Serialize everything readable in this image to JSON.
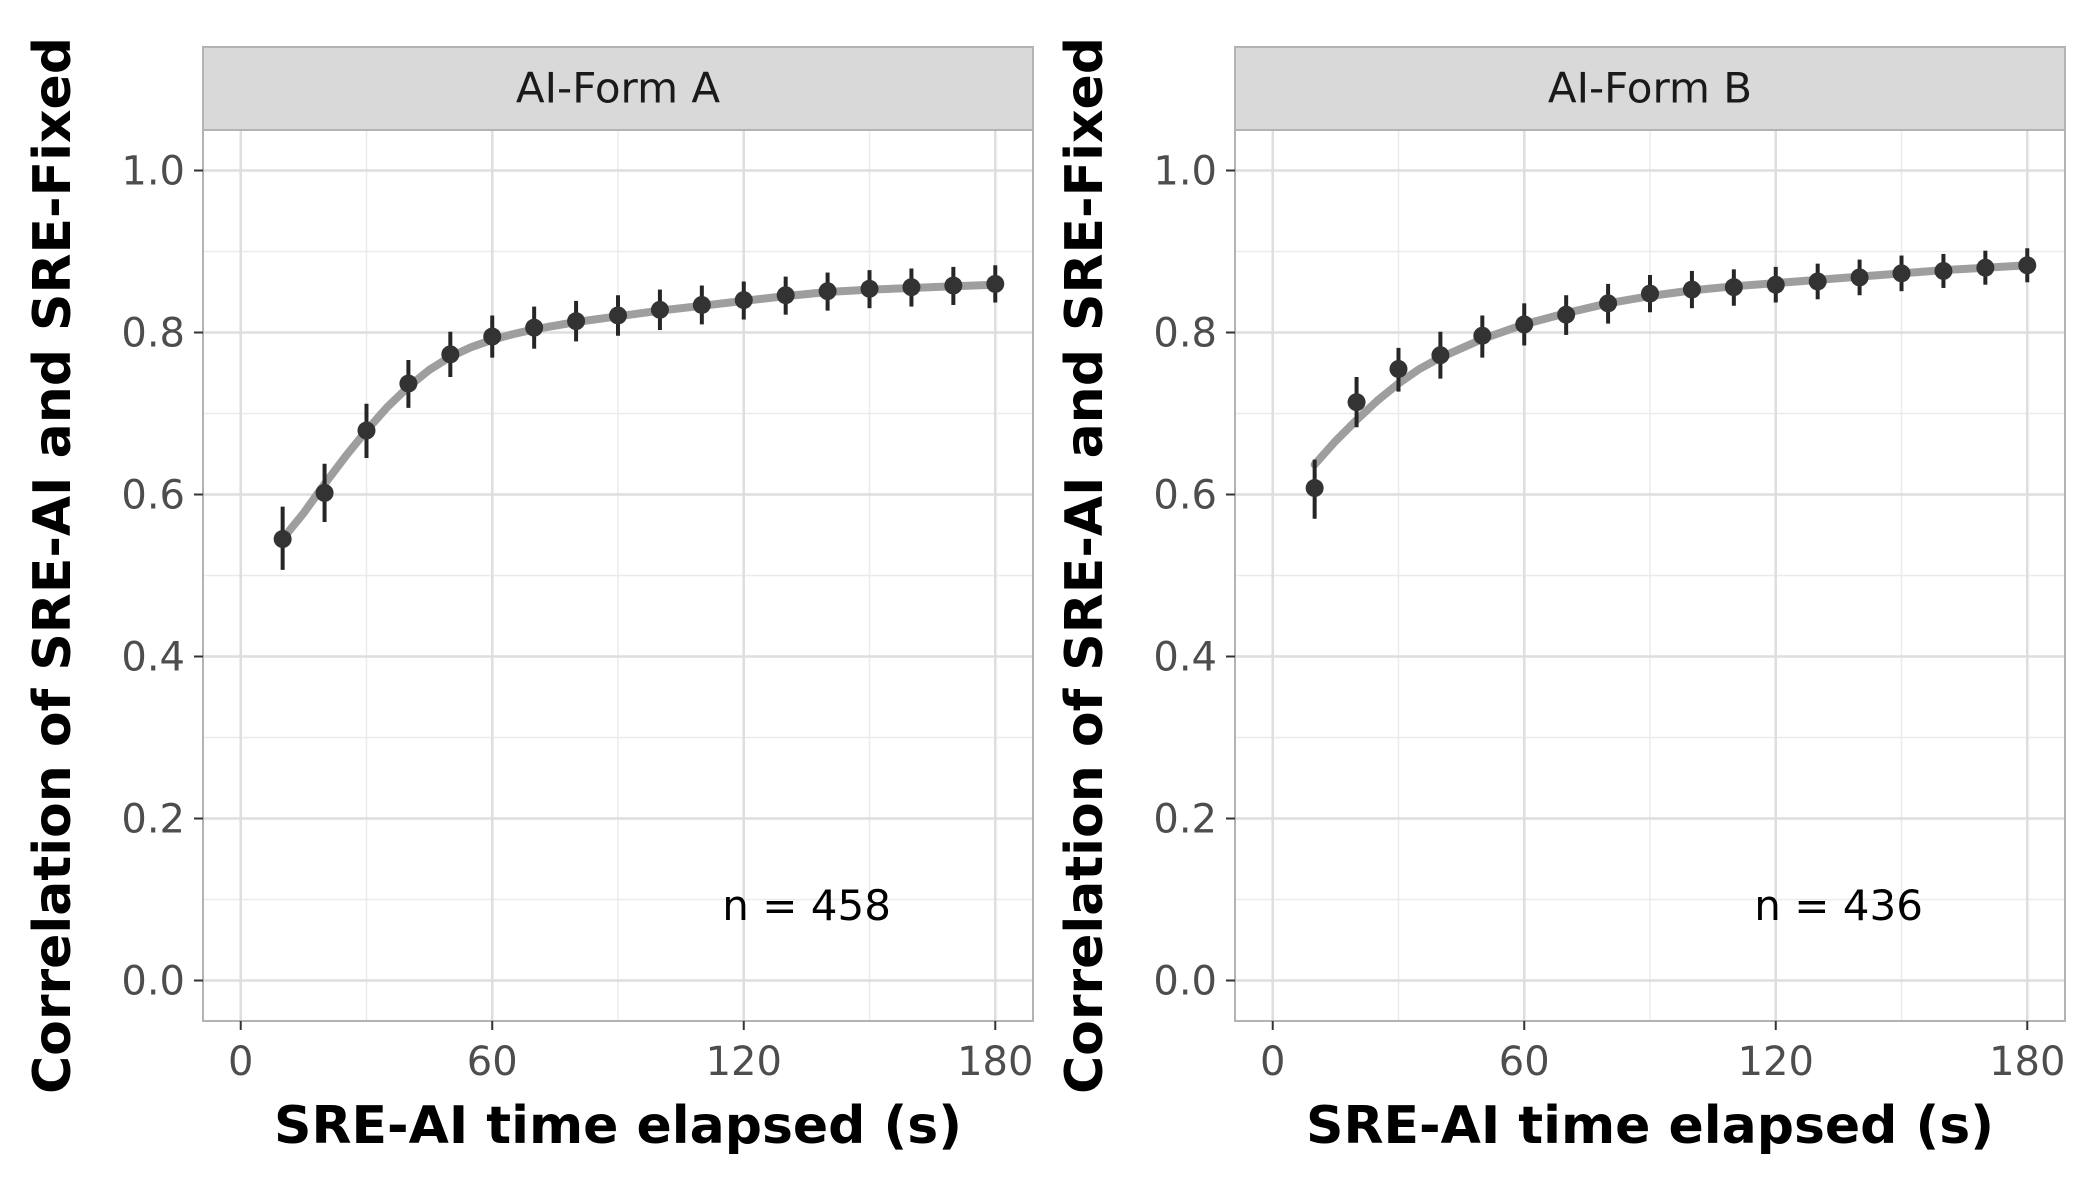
{
  "chart_data": [
    {
      "type": "scatter",
      "title": "AI-Form A",
      "annotation": "n = 458",
      "xlabel": "SRE-AI time elapsed (s)",
      "ylabel": "Correlation of SRE-AI and SRE-Fixed",
      "xlim": [
        -9,
        189
      ],
      "ylim": [
        -0.05,
        1.05
      ],
      "xticks": [
        0,
        60,
        120,
        180
      ],
      "xtick_labels": [
        "0",
        "60",
        "120",
        "180"
      ],
      "yticks": [
        0.0,
        0.2,
        0.4,
        0.6,
        0.8,
        1.0
      ],
      "ytick_labels": [
        "0.0",
        "0.2",
        "0.4",
        "0.6",
        "0.8",
        "1.0"
      ],
      "grid": true,
      "points": {
        "x": [
          10,
          20,
          30,
          40,
          50,
          60,
          70,
          80,
          90,
          100,
          110,
          120,
          130,
          140,
          150,
          160,
          170,
          180
        ],
        "y": [
          0.545,
          0.602,
          0.679,
          0.737,
          0.773,
          0.795,
          0.806,
          0.814,
          0.821,
          0.828,
          0.834,
          0.84,
          0.846,
          0.851,
          0.854,
          0.856,
          0.858,
          0.86
        ],
        "lower": [
          0.507,
          0.566,
          0.645,
          0.707,
          0.745,
          0.769,
          0.78,
          0.789,
          0.796,
          0.803,
          0.81,
          0.816,
          0.822,
          0.827,
          0.83,
          0.832,
          0.834,
          0.837
        ],
        "upper": [
          0.585,
          0.638,
          0.712,
          0.766,
          0.801,
          0.821,
          0.832,
          0.839,
          0.846,
          0.853,
          0.858,
          0.863,
          0.869,
          0.874,
          0.877,
          0.879,
          0.881,
          0.883
        ]
      },
      "smooth": {
        "x": [
          10,
          15,
          20,
          25,
          30,
          35,
          40,
          45,
          50,
          55,
          60,
          65,
          70,
          80,
          90,
          100,
          110,
          120,
          130,
          140,
          150,
          160,
          170,
          180
        ],
        "y": [
          0.545,
          0.577,
          0.613,
          0.647,
          0.679,
          0.708,
          0.733,
          0.754,
          0.77,
          0.782,
          0.791,
          0.798,
          0.804,
          0.813,
          0.82,
          0.827,
          0.833,
          0.839,
          0.845,
          0.85,
          0.853,
          0.855,
          0.857,
          0.859
        ]
      }
    },
    {
      "type": "scatter",
      "title": "AI-Form B",
      "annotation": "n = 436",
      "xlabel": "SRE-AI time elapsed (s)",
      "ylabel": "Correlation of SRE-AI and SRE-Fixed",
      "xlim": [
        -9,
        189
      ],
      "ylim": [
        -0.05,
        1.05
      ],
      "xticks": [
        0,
        60,
        120,
        180
      ],
      "xtick_labels": [
        "0",
        "60",
        "120",
        "180"
      ],
      "yticks": [
        0.0,
        0.2,
        0.4,
        0.6,
        0.8,
        1.0
      ],
      "ytick_labels": [
        "0.0",
        "0.2",
        "0.4",
        "0.6",
        "0.8",
        "1.0"
      ],
      "grid": true,
      "points": {
        "x": [
          10,
          20,
          30,
          40,
          50,
          60,
          70,
          80,
          90,
          100,
          110,
          120,
          130,
          140,
          150,
          160,
          170,
          180
        ],
        "y": [
          0.608,
          0.714,
          0.755,
          0.772,
          0.796,
          0.81,
          0.822,
          0.836,
          0.848,
          0.853,
          0.856,
          0.859,
          0.863,
          0.868,
          0.873,
          0.876,
          0.88,
          0.883
        ],
        "lower": [
          0.57,
          0.683,
          0.727,
          0.743,
          0.769,
          0.784,
          0.797,
          0.811,
          0.825,
          0.83,
          0.833,
          0.837,
          0.841,
          0.846,
          0.851,
          0.855,
          0.859,
          0.862
        ],
        "upper": [
          0.643,
          0.745,
          0.781,
          0.801,
          0.821,
          0.836,
          0.846,
          0.86,
          0.871,
          0.876,
          0.878,
          0.881,
          0.885,
          0.89,
          0.895,
          0.897,
          0.901,
          0.904
        ]
      },
      "smooth": {
        "x": [
          10,
          15,
          20,
          25,
          30,
          35,
          40,
          50,
          60,
          70,
          80,
          90,
          100,
          110,
          120,
          130,
          140,
          150,
          160,
          170,
          180
        ],
        "y": [
          0.637,
          0.666,
          0.692,
          0.716,
          0.737,
          0.755,
          0.769,
          0.792,
          0.81,
          0.824,
          0.836,
          0.845,
          0.852,
          0.857,
          0.861,
          0.865,
          0.869,
          0.873,
          0.877,
          0.88,
          0.883
        ]
      }
    }
  ]
}
